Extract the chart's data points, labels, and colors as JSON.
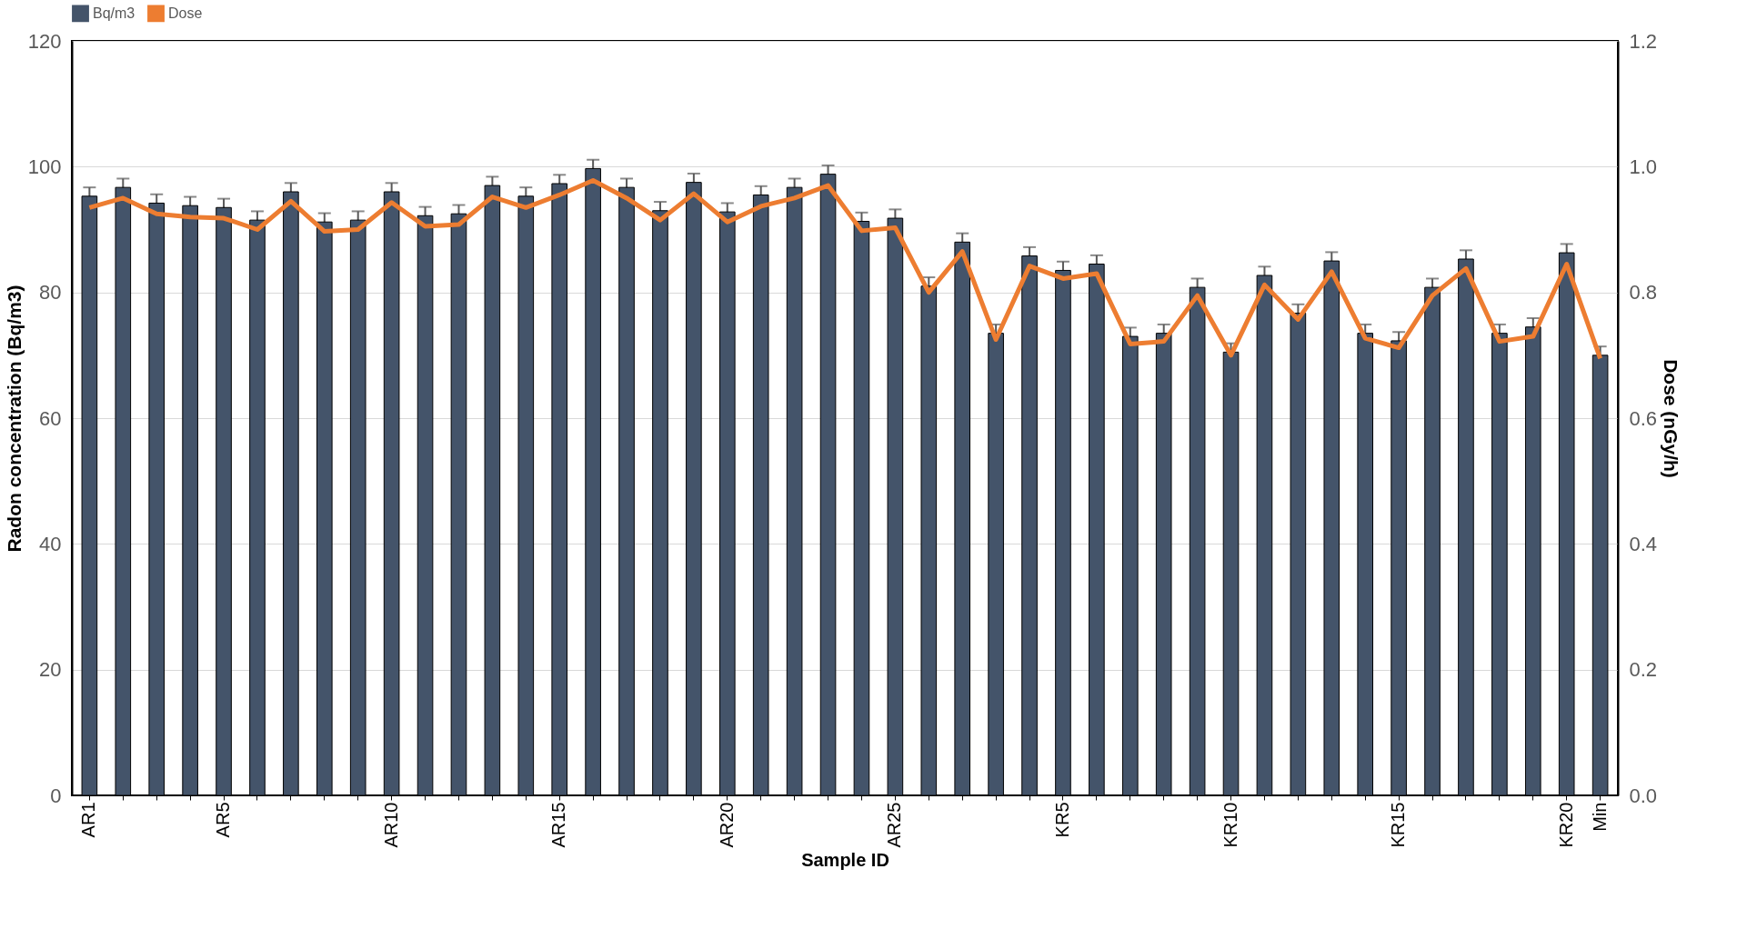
{
  "chart_data": {
    "type": "bar",
    "xlabel": "Sample ID",
    "ylabel": "Radon concentration (Bq/m3)",
    "y2label": "Dose (nGy/h)",
    "categories": [
      "AR1",
      null,
      null,
      null,
      "AR5",
      null,
      null,
      null,
      null,
      "AR10",
      null,
      null,
      null,
      null,
      "AR15",
      null,
      null,
      null,
      null,
      "AR20",
      null,
      null,
      null,
      null,
      "AR25",
      null,
      null,
      null,
      null,
      "KR5",
      null,
      null,
      null,
      null,
      "KR10",
      null,
      null,
      null,
      null,
      "KR15",
      null,
      null,
      null,
      null,
      "KR20",
      "Min"
    ],
    "series": [
      {
        "name": "Bq/m3",
        "color": "#44546a",
        "values": [
          95.3,
          96.7,
          94.2,
          93.8,
          93.5,
          91.5,
          96,
          91.2,
          91.5,
          96,
          92.2,
          92.5,
          97,
          95.3,
          97.3,
          99.7,
          96.7,
          93,
          97.5,
          92.8,
          95.5,
          96.7,
          98.8,
          91.3,
          91.8,
          81,
          88,
          73.5,
          85.8,
          83.5,
          84.5,
          73,
          73.5,
          80.8,
          70.5,
          82.7,
          76.7,
          85,
          73.5,
          72.3,
          80.8,
          85.3,
          73.5,
          74.5,
          86.3,
          70
        ],
        "errors": [
          1.4,
          1.4,
          1.4,
          1.4,
          1.4,
          1.4,
          1.4,
          1.4,
          1.4,
          1.4,
          1.4,
          1.4,
          1.4,
          1.4,
          1.4,
          1.4,
          1.4,
          1.4,
          1.4,
          1.4,
          1.4,
          1.4,
          1.4,
          1.4,
          1.4,
          1.4,
          1.4,
          1.4,
          1.4,
          1.4,
          1.4,
          1.4,
          1.4,
          1.4,
          1.4,
          1.4,
          1.4,
          1.4,
          1.4,
          1.4,
          1.4,
          1.4,
          1.4,
          1.4,
          1.4,
          1.4
        ]
      },
      {
        "name": "Dose",
        "type": "line",
        "axis": "y2",
        "color": "#ed7d31",
        "values": [
          0.935,
          0.95,
          0.925,
          0.92,
          0.918,
          0.9,
          0.945,
          0.897,
          0.9,
          0.943,
          0.905,
          0.908,
          0.952,
          0.935,
          0.955,
          0.978,
          0.95,
          0.915,
          0.957,
          0.912,
          0.937,
          0.95,
          0.97,
          0.898,
          0.903,
          0.8,
          0.865,
          0.725,
          0.842,
          0.822,
          0.83,
          0.718,
          0.722,
          0.795,
          0.7,
          0.812,
          0.757,
          0.833,
          0.727,
          0.712,
          0.795,
          0.838,
          0.722,
          0.73,
          0.845,
          0.695
        ]
      }
    ],
    "ylim": [
      0,
      120
    ],
    "yticks": [
      0,
      20,
      40,
      60,
      80,
      100,
      120
    ],
    "y2lim": [
      0,
      1.2
    ],
    "y2ticks": [
      {
        "value": 0,
        "label": "0.0"
      },
      {
        "value": 0.2,
        "label": "0.2"
      },
      {
        "value": 0.4,
        "label": "0.4"
      },
      {
        "value": 0.6,
        "label": "0.6"
      },
      {
        "value": 0.8,
        "label": "0.8"
      },
      {
        "value": 1.0,
        "label": "1.0"
      },
      {
        "value": 1.2,
        "label": "1.2"
      }
    ],
    "grid": "y",
    "legend": "top"
  }
}
